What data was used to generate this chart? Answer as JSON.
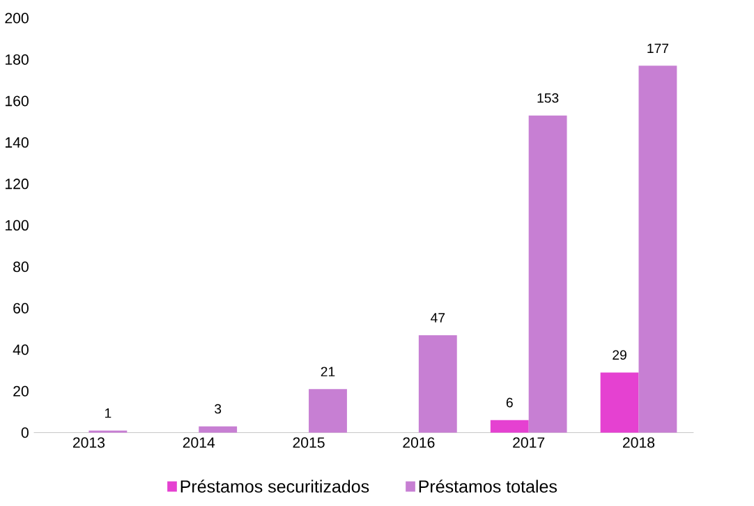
{
  "chart_data": {
    "type": "bar",
    "categories": [
      "2013",
      "2014",
      "2015",
      "2016",
      "2017",
      "2018"
    ],
    "series": [
      {
        "name": "Préstamos securitizados",
        "color": "#e541d1",
        "values": [
          null,
          null,
          null,
          null,
          6,
          29
        ]
      },
      {
        "name": "Préstamos totales",
        "color": "#c77fd3",
        "values": [
          1,
          3,
          21,
          47,
          153,
          177
        ]
      }
    ],
    "ylim": [
      0,
      200
    ],
    "yticks": [
      0,
      20,
      40,
      60,
      80,
      100,
      120,
      140,
      160,
      180,
      200
    ],
    "data_labels": true,
    "legend": "bottom",
    "grid": false
  }
}
